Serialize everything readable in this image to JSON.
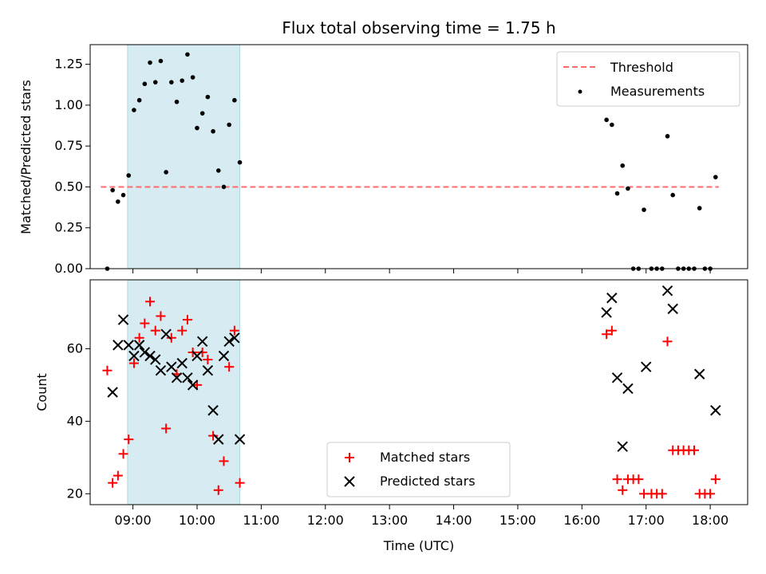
{
  "chart_data": [
    {
      "type": "scatter",
      "title": "Flux total observing time = 1.75 h",
      "ylabel": "Matched/Predicted stars",
      "xlabel": "",
      "xlim": [
        "08:20",
        "18:35"
      ],
      "ylim": [
        0,
        1.37
      ],
      "yticks": [
        0.0,
        0.25,
        0.5,
        0.75,
        1.0,
        1.25
      ],
      "ytick_labels": [
        "0.00",
        "0.25",
        "0.50",
        "0.75",
        "1.00",
        "1.25"
      ],
      "grid": false,
      "legend_placement": "top-right",
      "highlight_span": {
        "start": "08:55",
        "end": "10:40",
        "color": "#add8e6"
      },
      "threshold": {
        "name": "Threshold",
        "value": 0.5,
        "from": "08:30",
        "to": "18:08",
        "color": "#ff6b6b",
        "style": "dashed"
      },
      "series": [
        {
          "name": "Measurements",
          "marker": "dot",
          "color": "#000000",
          "points": [
            [
              "08:36",
              0.0
            ],
            [
              "08:41",
              0.48
            ],
            [
              "08:46",
              0.41
            ],
            [
              "08:51",
              0.45
            ],
            [
              "08:56",
              0.57
            ],
            [
              "09:01",
              0.97
            ],
            [
              "09:06",
              1.03
            ],
            [
              "09:11",
              1.13
            ],
            [
              "09:16",
              1.26
            ],
            [
              "09:21",
              1.14
            ],
            [
              "09:26",
              1.27
            ],
            [
              "09:31",
              0.59
            ],
            [
              "09:36",
              1.14
            ],
            [
              "09:41",
              1.02
            ],
            [
              "09:46",
              1.15
            ],
            [
              "09:51",
              1.31
            ],
            [
              "09:56",
              1.17
            ],
            [
              "10:00",
              0.86
            ],
            [
              "10:05",
              0.95
            ],
            [
              "10:10",
              1.05
            ],
            [
              "10:15",
              0.84
            ],
            [
              "10:20",
              0.6
            ],
            [
              "10:25",
              0.5
            ],
            [
              "10:30",
              0.88
            ],
            [
              "10:35",
              1.03
            ],
            [
              "10:40",
              0.65
            ],
            [
              "16:23",
              0.91
            ],
            [
              "16:28",
              0.88
            ],
            [
              "16:33",
              0.46
            ],
            [
              "16:38",
              0.63
            ],
            [
              "16:43",
              0.49
            ],
            [
              "16:48",
              0.0
            ],
            [
              "16:53",
              0.0
            ],
            [
              "16:58",
              0.36
            ],
            [
              "17:05",
              0.0
            ],
            [
              "17:10",
              0.0
            ],
            [
              "17:15",
              0.0
            ],
            [
              "17:20",
              0.81
            ],
            [
              "17:25",
              0.45
            ],
            [
              "17:30",
              0.0
            ],
            [
              "17:35",
              0.0
            ],
            [
              "17:40",
              0.0
            ],
            [
              "17:45",
              0.0
            ],
            [
              "17:50",
              0.37
            ],
            [
              "17:55",
              0.0
            ],
            [
              "18:00",
              0.0
            ],
            [
              "18:05",
              0.56
            ]
          ]
        }
      ]
    },
    {
      "type": "scatter",
      "title": "",
      "ylabel": "Count",
      "xlabel": "Time (UTC)",
      "xlim": [
        "08:20",
        "18:35"
      ],
      "ylim": [
        17,
        79
      ],
      "yticks": [
        20,
        40,
        60
      ],
      "ytick_labels": [
        "20",
        "40",
        "60"
      ],
      "xticks": [
        "09:00",
        "10:00",
        "11:00",
        "12:00",
        "13:00",
        "14:00",
        "15:00",
        "16:00",
        "17:00",
        "18:00"
      ],
      "grid": false,
      "legend_placement": "bottom-center",
      "highlight_span": {
        "start": "08:55",
        "end": "10:40",
        "color": "#add8e6"
      },
      "series": [
        {
          "name": "Matched stars",
          "marker": "plus",
          "color": "#ff0000",
          "points": [
            [
              "08:36",
              54
            ],
            [
              "08:41",
              23
            ],
            [
              "08:46",
              25
            ],
            [
              "08:51",
              31
            ],
            [
              "08:56",
              35
            ],
            [
              "09:01",
              56
            ],
            [
              "09:06",
              63
            ],
            [
              "09:11",
              67
            ],
            [
              "09:16",
              73
            ],
            [
              "09:21",
              65
            ],
            [
              "09:26",
              69
            ],
            [
              "09:31",
              38
            ],
            [
              "09:36",
              63
            ],
            [
              "09:41",
              53
            ],
            [
              "09:46",
              65
            ],
            [
              "09:51",
              68
            ],
            [
              "09:56",
              59
            ],
            [
              "10:00",
              50
            ],
            [
              "10:05",
              59
            ],
            [
              "10:10",
              57
            ],
            [
              "10:15",
              36
            ],
            [
              "10:20",
              21
            ],
            [
              "10:25",
              29
            ],
            [
              "10:30",
              55
            ],
            [
              "10:35",
              65
            ],
            [
              "10:40",
              23
            ],
            [
              "16:23",
              64
            ],
            [
              "16:28",
              65
            ],
            [
              "16:33",
              24
            ],
            [
              "16:38",
              21
            ],
            [
              "16:43",
              24
            ],
            [
              "16:48",
              24
            ],
            [
              "16:53",
              24
            ],
            [
              "16:58",
              20
            ],
            [
              "17:05",
              20
            ],
            [
              "17:10",
              20
            ],
            [
              "17:15",
              20
            ],
            [
              "17:20",
              62
            ],
            [
              "17:25",
              32
            ],
            [
              "17:30",
              32
            ],
            [
              "17:35",
              32
            ],
            [
              "17:40",
              32
            ],
            [
              "17:45",
              32
            ],
            [
              "17:50",
              20
            ],
            [
              "17:55",
              20
            ],
            [
              "18:00",
              20
            ],
            [
              "18:05",
              24
            ]
          ]
        },
        {
          "name": "Predicted stars",
          "marker": "x",
          "color": "#000000",
          "points": [
            [
              "08:41",
              48
            ],
            [
              "08:46",
              61
            ],
            [
              "08:51",
              68
            ],
            [
              "08:56",
              61
            ],
            [
              "09:01",
              58
            ],
            [
              "09:06",
              61
            ],
            [
              "09:11",
              59
            ],
            [
              "09:16",
              58
            ],
            [
              "09:21",
              57
            ],
            [
              "09:26",
              54
            ],
            [
              "09:31",
              64
            ],
            [
              "09:36",
              55
            ],
            [
              "09:41",
              52
            ],
            [
              "09:46",
              56
            ],
            [
              "09:51",
              52
            ],
            [
              "09:56",
              50
            ],
            [
              "10:00",
              58
            ],
            [
              "10:05",
              62
            ],
            [
              "10:10",
              54
            ],
            [
              "10:15",
              43
            ],
            [
              "10:20",
              35
            ],
            [
              "10:25",
              58
            ],
            [
              "10:30",
              62
            ],
            [
              "10:35",
              63
            ],
            [
              "10:40",
              35
            ],
            [
              "16:23",
              70
            ],
            [
              "16:28",
              74
            ],
            [
              "16:33",
              52
            ],
            [
              "16:38",
              33
            ],
            [
              "16:43",
              49
            ],
            [
              "17:00",
              55
            ],
            [
              "17:20",
              76
            ],
            [
              "17:25",
              71
            ],
            [
              "17:50",
              53
            ],
            [
              "18:05",
              43
            ]
          ]
        }
      ]
    }
  ]
}
